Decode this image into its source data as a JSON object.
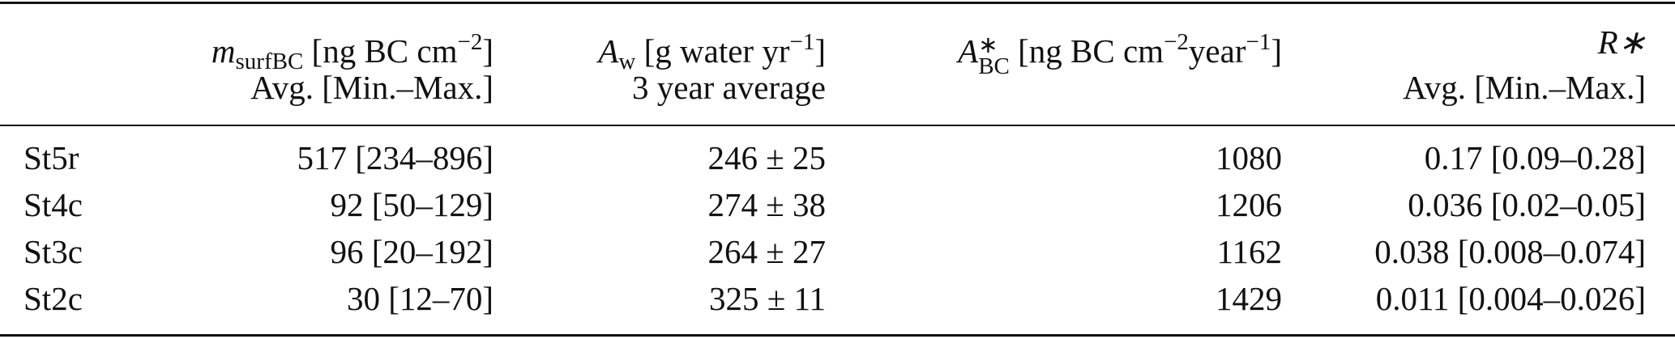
{
  "table": {
    "header": [
      {
        "line1": [
          {
            "text": "m",
            "pos": "italic"
          },
          {
            "text": "surfBC",
            "pos": "sub"
          },
          {
            "text": " [ng BC cm",
            "pos": "base"
          },
          {
            "text": "−2",
            "pos": "sup"
          },
          {
            "text": "]",
            "pos": "base"
          }
        ],
        "line2": "Avg. [Min.–Max.]"
      },
      {
        "line1": [
          {
            "text": "A",
            "pos": "italic"
          },
          {
            "text": "w",
            "pos": "sub"
          },
          {
            "text": " [g water yr",
            "pos": "base"
          },
          {
            "text": "−1",
            "pos": "sup"
          },
          {
            "text": "]",
            "pos": "base"
          }
        ],
        "line2": "3 year average"
      },
      {
        "line1": [
          {
            "text": "A",
            "pos": "italic"
          },
          {
            "sup": "∗",
            "sub": "BC",
            "pos": "stack"
          },
          {
            "text": " [ng BC cm",
            "pos": "base"
          },
          {
            "text": "−2",
            "pos": "sup"
          },
          {
            "text": "year",
            "pos": "base"
          },
          {
            "text": "−1",
            "pos": "sup"
          },
          {
            "text": "]",
            "pos": "base"
          }
        ]
      },
      {
        "line1": [
          {
            "text": "R∗",
            "pos": "italic"
          }
        ],
        "line2": "Avg. [Min.–Max.]"
      }
    ],
    "rows": [
      [
        "St5r",
        "517 [234–896]",
        "246 ± 25",
        "1080",
        "0.17 [0.09–0.28]"
      ],
      [
        "St4c",
        "92 [50–129]",
        "274 ± 38",
        "1206",
        "0.036 [0.02–0.05]"
      ],
      [
        "St3c",
        "96 [20–192]",
        "264 ± 27",
        "1162",
        "0.038 [0.008–0.074]"
      ],
      [
        "St2c",
        "30 [12–70]",
        "325 ± 11",
        "1429",
        "0.011 [0.004–0.026]"
      ]
    ]
  }
}
